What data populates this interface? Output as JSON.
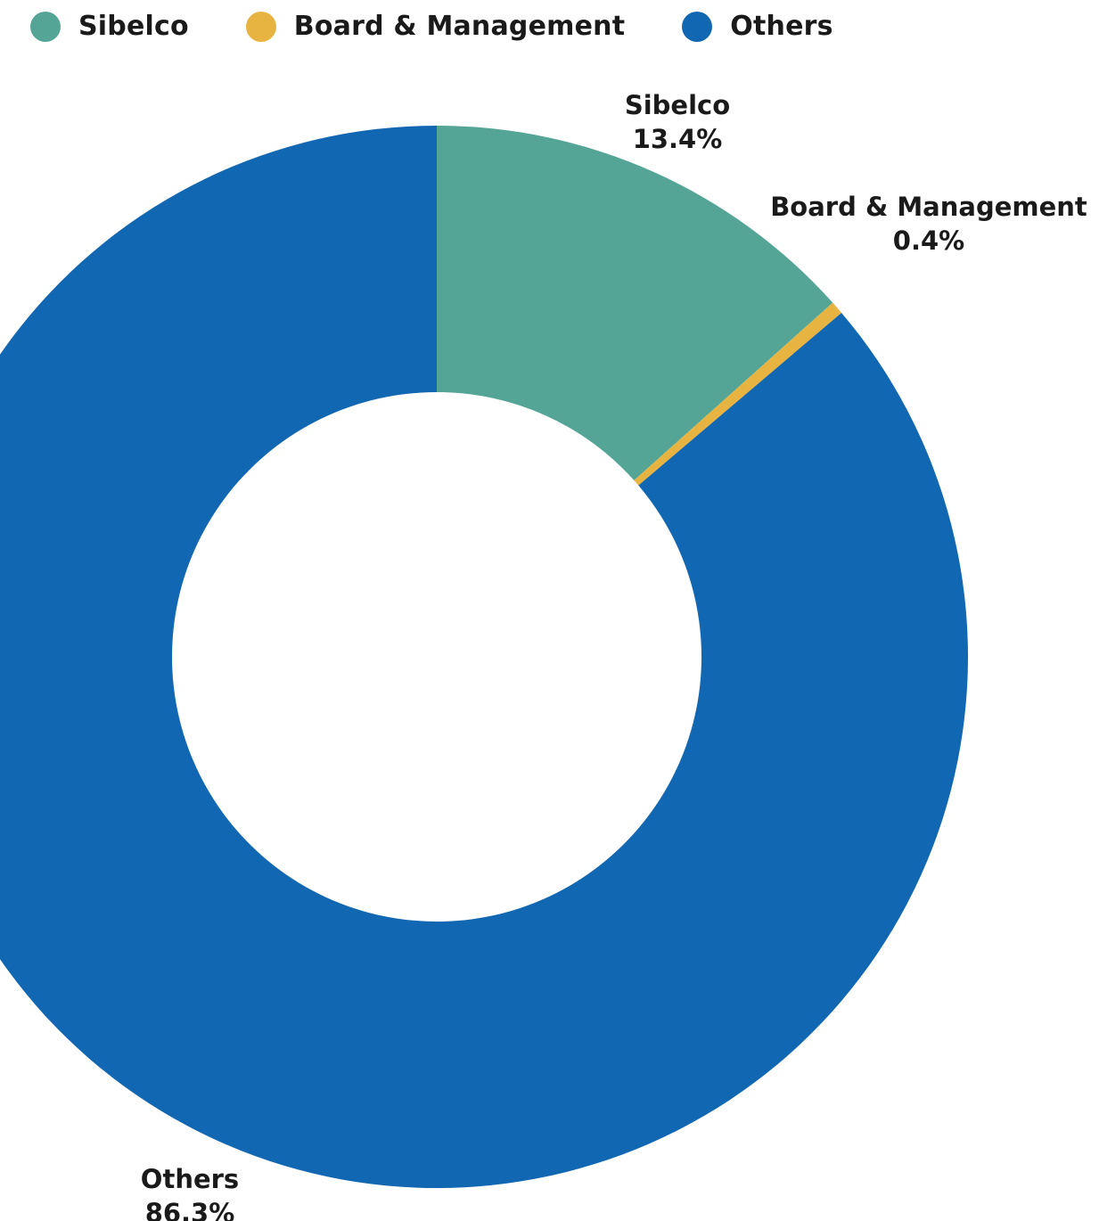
{
  "chart_data": {
    "type": "pie",
    "style": "donut",
    "title": "",
    "legend_placement": "top-left",
    "slices": [
      {
        "name": "Sibelco",
        "value": 13.4,
        "label": "13.4%",
        "color": "#55A596"
      },
      {
        "name": "Board & Management",
        "value": 0.4,
        "label": "0.4%",
        "color": "#E7B441"
      },
      {
        "name": "Others",
        "value": 86.3,
        "label": "86.3%",
        "color": "#1267B2"
      }
    ]
  }
}
